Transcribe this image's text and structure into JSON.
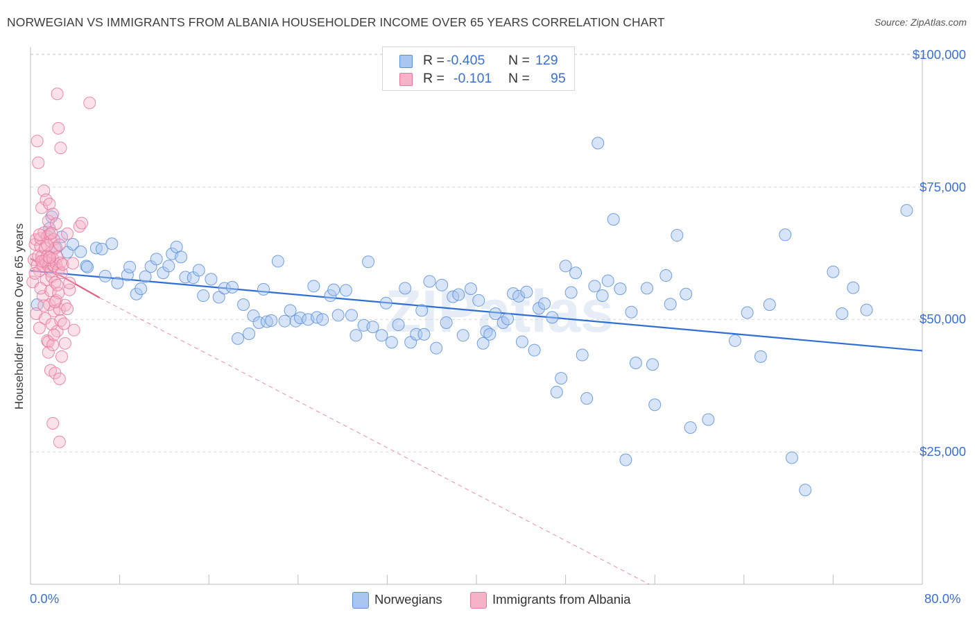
{
  "header": {
    "title": "NORWEGIAN VS IMMIGRANTS FROM ALBANIA HOUSEHOLDER INCOME OVER 65 YEARS CORRELATION CHART",
    "source": "Source: ZipAtlas.com"
  },
  "legend": {
    "rows": [
      {
        "r_label": "R =",
        "r_value": "-0.405",
        "n_label": "N =",
        "n_value": "129",
        "color": "#a9c6f0"
      },
      {
        "r_label": "R =",
        "r_value": "-0.101",
        "n_label": "N =",
        "n_value": "95",
        "color": "#f6b3c8"
      }
    ],
    "bottom": [
      {
        "label": "Norwegians",
        "color": "#a9c6f0"
      },
      {
        "label": "Immigrants from Albania",
        "color": "#f6b3c8"
      }
    ]
  },
  "axes": {
    "x_min_label": "0.0%",
    "x_max_label": "80.0%",
    "y_title": "Householder Income Over 65 years",
    "y_ticks": [
      {
        "value": 100000,
        "label": "$100,000"
      },
      {
        "value": 75000,
        "label": "$75,000"
      },
      {
        "value": 50000,
        "label": "$50,000"
      },
      {
        "value": 25000,
        "label": "$25,000"
      }
    ]
  },
  "watermark": "ZIPatlas",
  "colors": {
    "blue_fill": "#a9c6f0",
    "blue_stroke": "#5b8fd9",
    "blue_line": "#2f6fd3",
    "pink_fill": "#f6b3c8",
    "pink_stroke": "#e8779d",
    "pink_line": "#e0607f",
    "axis_text": "#3b6fd4",
    "grid": "#d9d9d9"
  },
  "chart_data": {
    "type": "scatter",
    "title": "NORWEGIAN VS IMMIGRANTS FROM ALBANIA HOUSEHOLDER INCOME OVER 65 YEARS CORRELATION CHART",
    "xlabel": "",
    "ylabel": "Householder Income Over 65 years",
    "xlim": [
      0,
      80
    ],
    "ylim": [
      0,
      102500
    ],
    "x_unit": "%",
    "grid": "horizontal dashed",
    "legend_position": "top-center",
    "series": [
      {
        "name": "Norwegians",
        "color": "#a9c6f0",
        "r": -0.405,
        "n": 129,
        "trend": {
          "x": [
            0,
            80
          ],
          "y": [
            59200,
            44100
          ]
        },
        "points": [
          [
            0.6,
            52800
          ],
          [
            1.7,
            67200
          ],
          [
            1.9,
            69400
          ],
          [
            2.3,
            63600
          ],
          [
            2.8,
            65600
          ],
          [
            3.3,
            62700
          ],
          [
            3.8,
            64200
          ],
          [
            4.5,
            62800
          ],
          [
            5.0,
            60100
          ],
          [
            5.1,
            59900
          ],
          [
            5.9,
            63500
          ],
          [
            6.4,
            63300
          ],
          [
            6.7,
            58200
          ],
          [
            7.3,
            64300
          ],
          [
            7.8,
            56900
          ],
          [
            8.7,
            58400
          ],
          [
            8.9,
            59900
          ],
          [
            9.5,
            54800
          ],
          [
            9.9,
            55800
          ],
          [
            10.3,
            58100
          ],
          [
            10.8,
            60000
          ],
          [
            11.3,
            61400
          ],
          [
            11.9,
            58800
          ],
          [
            12.4,
            60100
          ],
          [
            12.7,
            62400
          ],
          [
            13.1,
            63700
          ],
          [
            13.5,
            61800
          ],
          [
            13.9,
            58000
          ],
          [
            14.6,
            57900
          ],
          [
            15.1,
            59300
          ],
          [
            15.5,
            54500
          ],
          [
            16.2,
            57600
          ],
          [
            16.9,
            54200
          ],
          [
            17.4,
            55900
          ],
          [
            18.1,
            56100
          ],
          [
            18.6,
            46400
          ],
          [
            19.1,
            52800
          ],
          [
            19.6,
            47300
          ],
          [
            20.0,
            50700
          ],
          [
            20.5,
            49400
          ],
          [
            20.9,
            55700
          ],
          [
            21.2,
            49600
          ],
          [
            21.6,
            49800
          ],
          [
            22.2,
            61000
          ],
          [
            22.8,
            49700
          ],
          [
            23.3,
            51700
          ],
          [
            23.8,
            49700
          ],
          [
            24.2,
            50300
          ],
          [
            24.9,
            50000
          ],
          [
            25.4,
            56300
          ],
          [
            25.7,
            50400
          ],
          [
            26.2,
            50000
          ],
          [
            26.9,
            54500
          ],
          [
            27.2,
            55600
          ],
          [
            27.6,
            50800
          ],
          [
            28.3,
            55500
          ],
          [
            28.8,
            50800
          ],
          [
            29.2,
            47000
          ],
          [
            29.9,
            48900
          ],
          [
            30.3,
            60900
          ],
          [
            30.7,
            48600
          ],
          [
            31.5,
            47000
          ],
          [
            31.9,
            53100
          ],
          [
            32.4,
            45700
          ],
          [
            33.0,
            49000
          ],
          [
            33.6,
            55900
          ],
          [
            34.1,
            45700
          ],
          [
            34.6,
            47200
          ],
          [
            35.1,
            51700
          ],
          [
            35.3,
            47200
          ],
          [
            35.8,
            57200
          ],
          [
            36.4,
            44600
          ],
          [
            36.9,
            56500
          ],
          [
            37.3,
            49400
          ],
          [
            37.9,
            54300
          ],
          [
            38.4,
            54700
          ],
          [
            38.8,
            47000
          ],
          [
            39.5,
            55800
          ],
          [
            40.2,
            53600
          ],
          [
            40.6,
            45500
          ],
          [
            40.9,
            47700
          ],
          [
            41.2,
            47200
          ],
          [
            41.7,
            51100
          ],
          [
            42.4,
            49400
          ],
          [
            42.8,
            50100
          ],
          [
            43.3,
            54900
          ],
          [
            43.8,
            54400
          ],
          [
            44.1,
            45800
          ],
          [
            44.5,
            55200
          ],
          [
            45.2,
            44200
          ],
          [
            45.6,
            52100
          ],
          [
            46.1,
            53000
          ],
          [
            46.8,
            50400
          ],
          [
            47.2,
            36300
          ],
          [
            47.6,
            38900
          ],
          [
            48.0,
            60100
          ],
          [
            48.5,
            55100
          ],
          [
            48.9,
            58800
          ],
          [
            49.5,
            43300
          ],
          [
            49.9,
            35100
          ],
          [
            50.6,
            56300
          ],
          [
            50.9,
            83300
          ],
          [
            51.3,
            54500
          ],
          [
            51.8,
            57300
          ],
          [
            52.3,
            68900
          ],
          [
            52.9,
            55800
          ],
          [
            53.4,
            23500
          ],
          [
            53.9,
            51400
          ],
          [
            54.3,
            41800
          ],
          [
            55.3,
            55900
          ],
          [
            55.8,
            41500
          ],
          [
            56.0,
            33900
          ],
          [
            57.0,
            58300
          ],
          [
            57.4,
            52900
          ],
          [
            58.0,
            65900
          ],
          [
            58.8,
            54800
          ],
          [
            59.2,
            29600
          ],
          [
            60.8,
            31100
          ],
          [
            63.2,
            46000
          ],
          [
            64.3,
            51300
          ],
          [
            65.5,
            43000
          ],
          [
            66.3,
            52800
          ],
          [
            67.7,
            66000
          ],
          [
            68.3,
            23900
          ],
          [
            69.5,
            17800
          ],
          [
            72.0,
            59000
          ],
          [
            72.8,
            51100
          ],
          [
            73.8,
            56000
          ],
          [
            75.0,
            51800
          ],
          [
            78.6,
            70600
          ]
        ]
      },
      {
        "name": "Immigrants from Albania",
        "color": "#f6b3c8",
        "r": -0.101,
        "n": 95,
        "trend": {
          "x": [
            0,
            6.2
          ],
          "y": [
            61500,
            54100
          ]
        },
        "trend_extended": {
          "x": [
            6.2,
            55.5
          ],
          "y": [
            54100,
            0
          ]
        },
        "points": [
          [
            0.2,
            57100
          ],
          [
            0.3,
            61300
          ],
          [
            0.4,
            64200
          ],
          [
            0.5,
            65100
          ],
          [
            0.5,
            51100
          ],
          [
            0.6,
            83700
          ],
          [
            0.6,
            60300
          ],
          [
            0.7,
            79600
          ],
          [
            0.7,
            62000
          ],
          [
            0.8,
            59200
          ],
          [
            0.8,
            48400
          ],
          [
            0.9,
            63800
          ],
          [
            0.9,
            65300
          ],
          [
            1.0,
            71100
          ],
          [
            1.0,
            61900
          ],
          [
            1.1,
            60100
          ],
          [
            1.1,
            54400
          ],
          [
            1.2,
            74300
          ],
          [
            1.2,
            66400
          ],
          [
            1.3,
            63500
          ],
          [
            1.3,
            61200
          ],
          [
            1.3,
            50200
          ],
          [
            1.4,
            72600
          ],
          [
            1.4,
            60700
          ],
          [
            1.4,
            57500
          ],
          [
            1.5,
            65700
          ],
          [
            1.5,
            62000
          ],
          [
            1.5,
            46000
          ],
          [
            1.6,
            68600
          ],
          [
            1.6,
            60100
          ],
          [
            1.6,
            45800
          ],
          [
            1.6,
            43800
          ],
          [
            1.7,
            71800
          ],
          [
            1.7,
            66100
          ],
          [
            1.7,
            61200
          ],
          [
            1.7,
            52800
          ],
          [
            1.8,
            64800
          ],
          [
            1.8,
            59100
          ],
          [
            1.8,
            55400
          ],
          [
            1.8,
            40400
          ],
          [
            1.9,
            62700
          ],
          [
            1.9,
            58100
          ],
          [
            1.9,
            49100
          ],
          [
            2.0,
            69900
          ],
          [
            2.0,
            61500
          ],
          [
            2.0,
            45200
          ],
          [
            2.0,
            30400
          ],
          [
            2.1,
            65100
          ],
          [
            2.1,
            60100
          ],
          [
            2.1,
            51600
          ],
          [
            2.2,
            63500
          ],
          [
            2.2,
            57000
          ],
          [
            2.2,
            39900
          ],
          [
            2.3,
            68100
          ],
          [
            2.3,
            60500
          ],
          [
            2.3,
            53600
          ],
          [
            2.4,
            92600
          ],
          [
            2.4,
            61800
          ],
          [
            2.4,
            47800
          ],
          [
            2.5,
            86100
          ],
          [
            2.5,
            59400
          ],
          [
            2.5,
            55000
          ],
          [
            2.6,
            64100
          ],
          [
            2.6,
            51900
          ],
          [
            2.6,
            38800
          ],
          [
            2.6,
            26900
          ],
          [
            2.7,
            82400
          ],
          [
            2.7,
            60700
          ],
          [
            2.7,
            49800
          ],
          [
            2.8,
            58800
          ],
          [
            2.8,
            43000
          ],
          [
            2.9,
            60400
          ],
          [
            3.0,
            49200
          ],
          [
            3.1,
            52700
          ],
          [
            3.1,
            45500
          ],
          [
            3.3,
            66200
          ],
          [
            3.3,
            52000
          ],
          [
            3.5,
            55600
          ],
          [
            3.5,
            56900
          ],
          [
            3.8,
            60600
          ],
          [
            3.9,
            48000
          ],
          [
            4.4,
            67600
          ],
          [
            4.6,
            68200
          ],
          [
            5.3,
            90900
          ],
          [
            0.4,
            58700
          ],
          [
            0.9,
            55900
          ],
          [
            1.2,
            52600
          ],
          [
            1.9,
            66300
          ],
          [
            2.1,
            47100
          ],
          [
            2.4,
            56500
          ],
          [
            1.0,
            61000
          ],
          [
            1.5,
            64000
          ],
          [
            2.2,
            53300
          ],
          [
            0.8,
            66000
          ],
          [
            1.7,
            61700
          ]
        ]
      }
    ]
  }
}
